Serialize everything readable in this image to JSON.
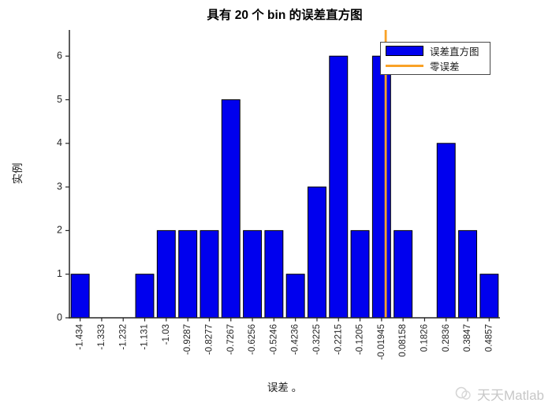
{
  "chart_data": {
    "type": "bar",
    "title": "具有 20 个 bin 的误差直方图",
    "xlabel": "误差 。",
    "ylabel": "实例",
    "categories": [
      "-1.434",
      "-1.333",
      "-1.232",
      "-1.131",
      "-1.03",
      "-0.9287",
      "-0.8277",
      "-0.7267",
      "-0.6256",
      "-0.5246",
      "-0.4236",
      "-0.3225",
      "-0.2215",
      "-0.1205",
      "-0.01945",
      "0.08158",
      "0.1826",
      "0.2836",
      "0.3847",
      "0.4857"
    ],
    "bin_centers": [
      -1.434,
      -1.333,
      -1.232,
      -1.131,
      -1.03,
      -0.9287,
      -0.8277,
      -0.7267,
      -0.6256,
      -0.5246,
      -0.4236,
      -0.3225,
      -0.2215,
      -0.1205,
      -0.01945,
      0.08158,
      0.1826,
      0.2836,
      0.3847,
      0.4857
    ],
    "values": [
      1,
      0,
      0,
      1,
      2,
      2,
      2,
      5,
      2,
      2,
      1,
      3,
      6,
      2,
      6,
      2,
      0,
      4,
      2,
      1
    ],
    "yticks": [
      0,
      1,
      2,
      3,
      4,
      5,
      6
    ],
    "ylim": [
      0,
      6.6
    ],
    "zero_line_x": 0,
    "grid": false,
    "legend_position": "top-right",
    "legend": [
      {
        "label": "误差直方图",
        "type": "bar"
      },
      {
        "label": "零误差",
        "type": "line"
      }
    ],
    "colors": {
      "bar_fill": "#0000EE",
      "bar_edge": "#000000",
      "zero_line": "#F9A227",
      "axis": "#262626",
      "tick_label": "#262626"
    }
  },
  "watermark": {
    "text": "天天Matlab"
  }
}
